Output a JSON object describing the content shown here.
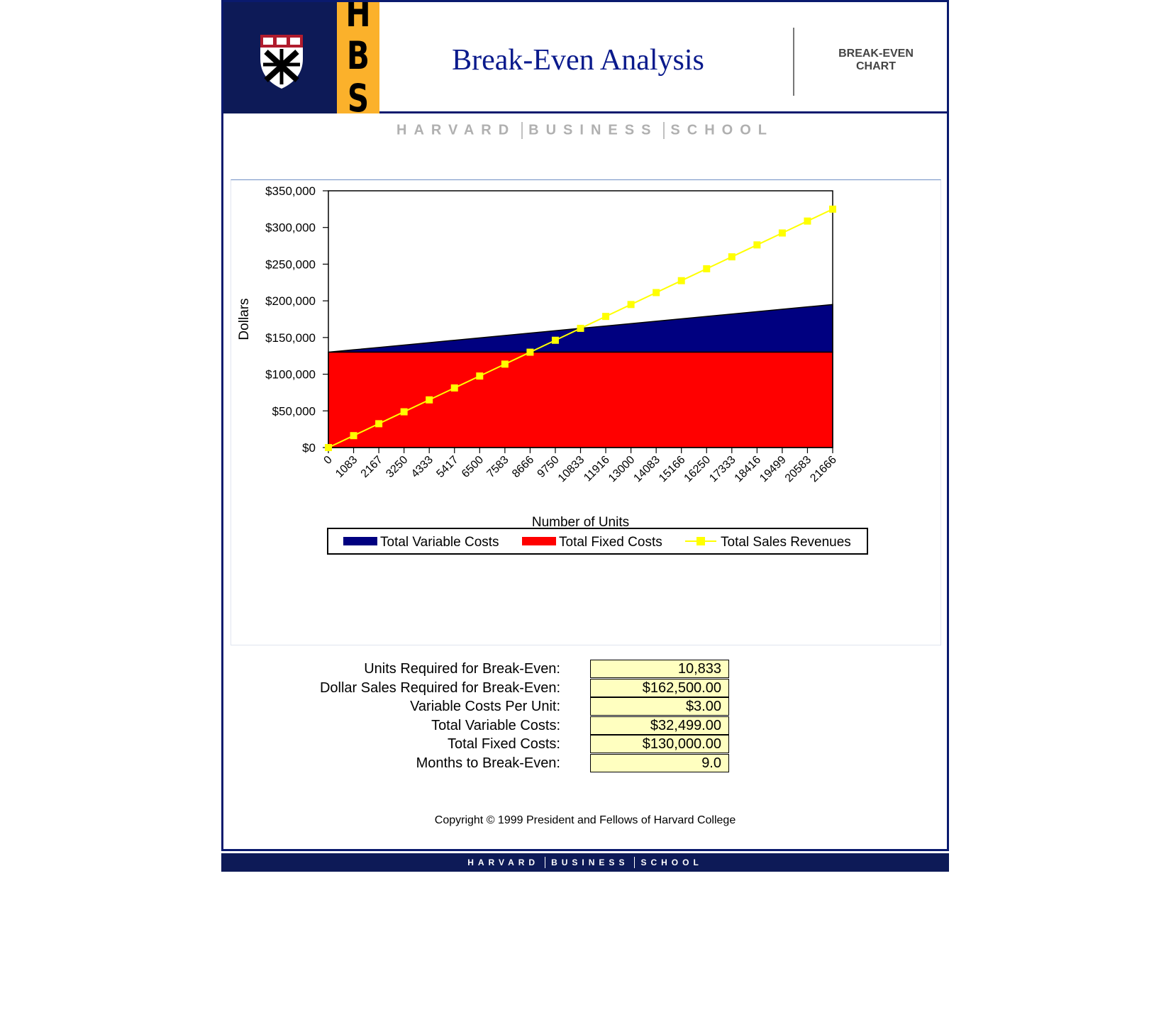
{
  "header": {
    "hbs_letters": [
      "H",
      "B",
      "S"
    ],
    "title": "Break-Even Analysis",
    "section_label_line1": "BREAK-EVEN",
    "section_label_line2": "CHART"
  },
  "wordmark": [
    "HARVARD",
    "BUSINESS",
    "SCHOOL"
  ],
  "chart_data": {
    "type": "area",
    "xlabel": "Number of Units",
    "ylabel": "Dollars",
    "ylim": [
      0,
      350000
    ],
    "yticks": [
      "$350,000",
      "$300,000",
      "$250,000",
      "$200,000",
      "$150,000",
      "$100,000",
      "$50,000",
      "$0"
    ],
    "ytick_values": [
      350000,
      300000,
      250000,
      200000,
      150000,
      100000,
      50000,
      0
    ],
    "categories": [
      "0",
      "1083",
      "2167",
      "3250",
      "4333",
      "5417",
      "6500",
      "7583",
      "8666",
      "9750",
      "10833",
      "11916",
      "13000",
      "14083",
      "15166",
      "16250",
      "17333",
      "18416",
      "19499",
      "20583",
      "21666"
    ],
    "series": [
      {
        "name": "Total Variable Costs",
        "type": "area",
        "color": "#000080",
        "values": [
          130000,
          133249,
          136501,
          139750,
          142999,
          146251,
          149500,
          152749,
          155998,
          159250,
          162499,
          165748,
          169000,
          172249,
          175498,
          178750,
          181999,
          185248,
          188497,
          191749,
          194998
        ]
      },
      {
        "name": "Total Fixed Costs",
        "type": "area",
        "color": "#ff0000",
        "values": [
          130000,
          130000,
          130000,
          130000,
          130000,
          130000,
          130000,
          130000,
          130000,
          130000,
          130000,
          130000,
          130000,
          130000,
          130000,
          130000,
          130000,
          130000,
          130000,
          130000,
          130000
        ]
      },
      {
        "name": "Total Sales Revenues",
        "type": "line",
        "color": "#ffff00",
        "marker": "square",
        "values": [
          0,
          16245,
          32505,
          48750,
          64995,
          81255,
          97500,
          113745,
          129990,
          146250,
          162495,
          178740,
          195000,
          211245,
          227490,
          243750,
          259995,
          276240,
          292485,
          308745,
          324990
        ]
      }
    ],
    "legend_position": "bottom"
  },
  "stats": [
    {
      "label": "Units Required for Break-Even:",
      "value": "10,833"
    },
    {
      "label": "Dollar Sales Required for Break-Even:",
      "value": "$162,500.00"
    },
    {
      "label": "Variable Costs Per Unit:",
      "value": "$3.00"
    },
    {
      "label": "Total Variable Costs:",
      "value": "$32,499.00"
    },
    {
      "label": "Total Fixed Costs:",
      "value": "$130,000.00"
    },
    {
      "label": "Months to Break-Even:",
      "value": "9.0"
    }
  ],
  "copyright": "Copyright © 1999 President and Fellows of Harvard College",
  "footer_wordmark": [
    "HARVARD",
    "BUSINESS",
    "SCHOOL"
  ]
}
